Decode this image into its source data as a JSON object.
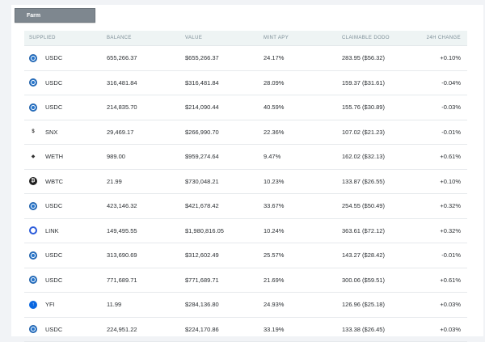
{
  "farm_tab": "Farm",
  "columns": [
    "SUPPLIED",
    "BALANCE",
    "VALUE",
    "MINT APY",
    "CLAIMABLE DODO",
    "24H CHANGE"
  ],
  "rows": [
    {
      "token": "USDC",
      "icon": "usdc-icon",
      "balance": "655,266.37",
      "value": "$655,266.37",
      "apy": "24.17%",
      "claimable": "283.95 ($56.32)",
      "change": "+0.10%"
    },
    {
      "token": "USDC",
      "icon": "usdc-icon",
      "balance": "316,481.84",
      "value": "$316,481.84",
      "apy": "28.09%",
      "claimable": "159.37 ($31.61)",
      "change": "-0.04%"
    },
    {
      "token": "USDC",
      "icon": "usdc-icon",
      "balance": "214,835.70",
      "value": "$214,090.44",
      "apy": "40.59%",
      "claimable": "155.76 ($30.89)",
      "change": "-0.03%"
    },
    {
      "token": "SNX",
      "icon": "snx-icon",
      "balance": "29,469.17",
      "value": "$266,990.70",
      "apy": "22.36%",
      "claimable": "107.02 ($21.23)",
      "change": "-0.01%"
    },
    {
      "token": "WETH",
      "icon": "weth-icon",
      "balance": "989.00",
      "value": "$959,274.64",
      "apy": "9.47%",
      "claimable": "162.02 ($32.13)",
      "change": "+0.61%"
    },
    {
      "token": "WBTC",
      "icon": "wbtc-icon",
      "balance": "21.99",
      "value": "$730,048.21",
      "apy": "10.23%",
      "claimable": "133.87 ($26.55)",
      "change": "+0.10%"
    },
    {
      "token": "USDC",
      "icon": "usdc-icon",
      "balance": "423,146.32",
      "value": "$421,678.42",
      "apy": "33.67%",
      "claimable": "254.55 ($50.49)",
      "change": "+0.32%"
    },
    {
      "token": "LINK",
      "icon": "link-icon",
      "balance": "149,495.55",
      "value": "$1,980,816.05",
      "apy": "10.24%",
      "claimable": "363.61 ($72.12)",
      "change": "+0.32%"
    },
    {
      "token": "USDC",
      "icon": "usdc-icon",
      "balance": "313,690.69",
      "value": "$312,602.49",
      "apy": "25.57%",
      "claimable": "143.27 ($28.42)",
      "change": "-0.01%"
    },
    {
      "token": "USDC",
      "icon": "usdc-icon",
      "balance": "771,689.71",
      "value": "$771,689.71",
      "apy": "21.69%",
      "claimable": "300.06 ($59.51)",
      "change": "+0.61%"
    },
    {
      "token": "YFI",
      "icon": "yfi-icon",
      "balance": "11.99",
      "value": "$284,136.80",
      "apy": "24.93%",
      "claimable": "126.96 ($25.18)",
      "change": "+0.03%"
    },
    {
      "token": "USDC",
      "icon": "usdc-icon",
      "balance": "224,951.22",
      "value": "$224,170.86",
      "apy": "33.19%",
      "claimable": "133.38 ($26.45)",
      "change": "+0.03%"
    }
  ]
}
